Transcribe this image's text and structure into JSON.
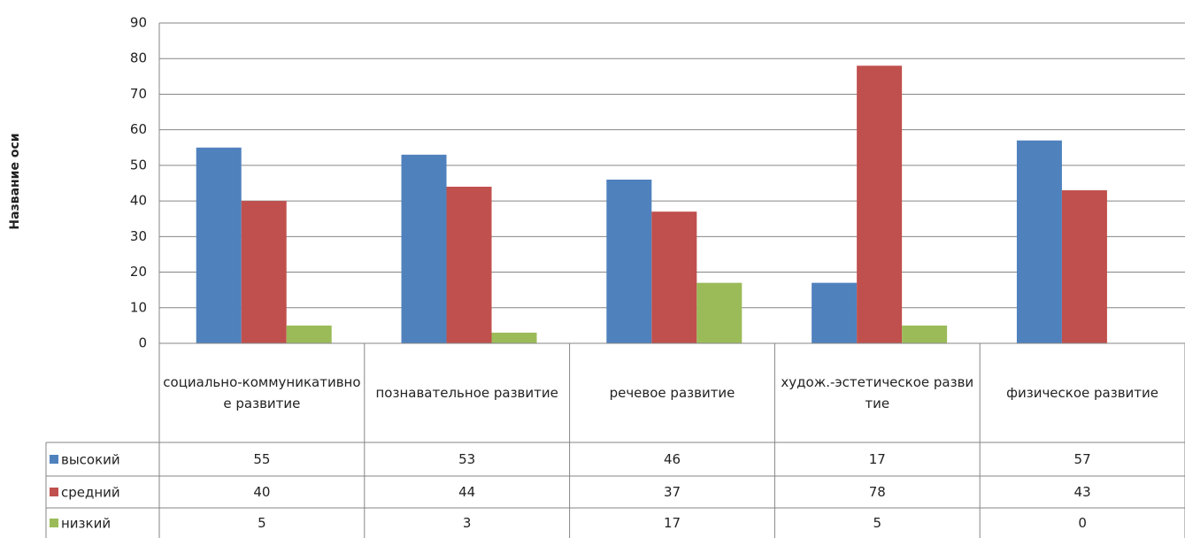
{
  "chart_data": {
    "type": "bar",
    "y_label": "Название оси",
    "categories": [
      "социально-коммуникативное развитие",
      "познавательное развитие",
      "речевое развитие",
      "худож.-эстетическое развитие",
      "физическое развитие"
    ],
    "series": [
      {
        "name": "высокий",
        "color": "#4f81bd",
        "values": [
          55,
          53,
          46,
          17,
          57
        ]
      },
      {
        "name": "средний",
        "color": "#c0504d",
        "values": [
          40,
          44,
          37,
          78,
          43
        ]
      },
      {
        "name": "низкий",
        "color": "#9bbb59",
        "values": [
          5,
          3,
          17,
          5,
          0
        ]
      }
    ],
    "ylim": [
      0,
      90
    ],
    "yticks": [
      0,
      10,
      20,
      30,
      40,
      50,
      60,
      70,
      80,
      90
    ],
    "grid": true,
    "data_table": true
  }
}
